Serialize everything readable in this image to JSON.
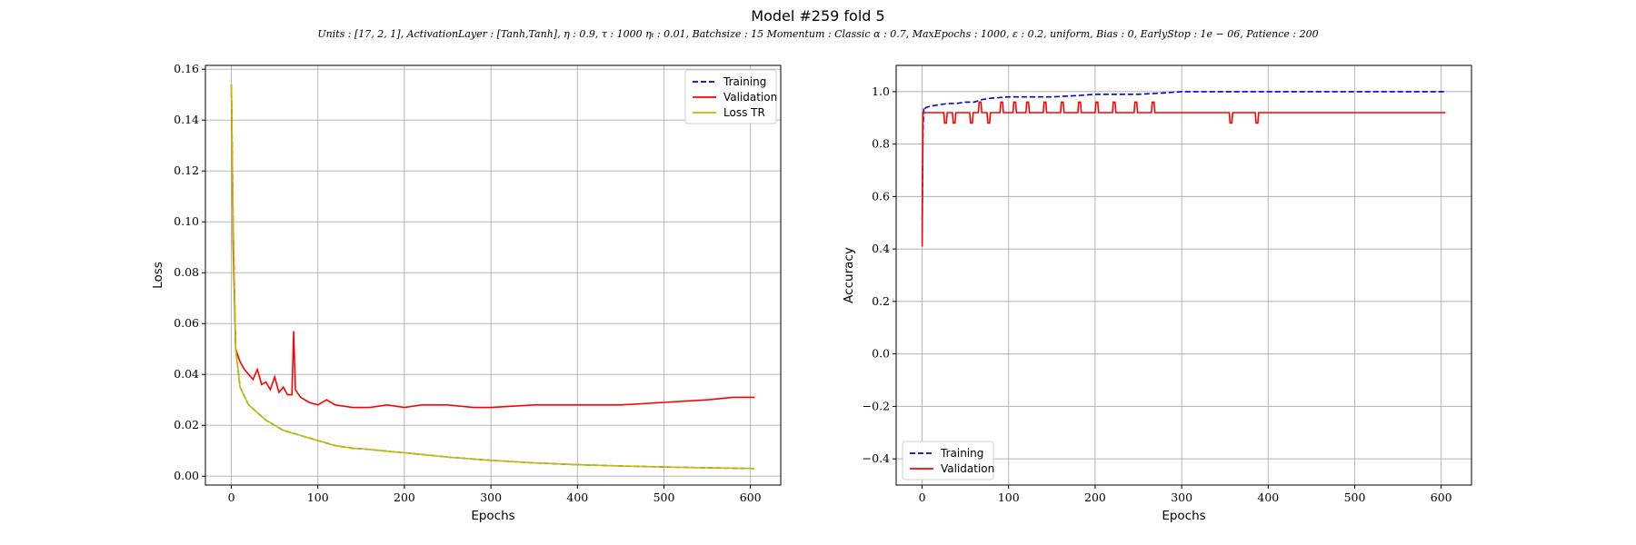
{
  "figure": {
    "title": "Model #259 fold 5",
    "subtitle": "Units : [17, 2, 1], ActivationLayer : [Tanh,Tanh], η : 0.9, τ : 1000 ηₜ : 0.01, Batchsize : 15 Momentum : Classic α : 0.7, MaxEpochs : 1000, ε : 0.2, uniform, Bias : 0, EarlyStop : 1e − 06, Patience : 200"
  },
  "colors": {
    "training": "#0000cc",
    "validation": "#ff0000",
    "loss_tr": "#bfbf00",
    "grid": "#b0b0b0"
  },
  "chart_data": [
    {
      "type": "line",
      "xlabel": "Epochs",
      "ylabel": "Loss",
      "xlim": [
        -30,
        635
      ],
      "ylim": [
        -0.0035,
        0.1615
      ],
      "xticks": [
        0,
        100,
        200,
        300,
        400,
        500,
        600
      ],
      "yticks": [
        0.0,
        0.02,
        0.04,
        0.06,
        0.08,
        0.1,
        0.12,
        0.14,
        0.16
      ],
      "ytick_labels": [
        "0.00",
        "0.02",
        "0.04",
        "0.06",
        "0.08",
        "0.10",
        "0.12",
        "0.14",
        "0.16"
      ],
      "grid": true,
      "legend": "top-right",
      "series": [
        {
          "name": "Training",
          "style": "dashed",
          "color_key": "training",
          "x": [
            0,
            2,
            5,
            10,
            20,
            30,
            40,
            50,
            60,
            70,
            80,
            90,
            100,
            120,
            140,
            160,
            180,
            200,
            250,
            300,
            350,
            400,
            450,
            500,
            550,
            605
          ],
          "y": [
            0.154,
            0.1,
            0.05,
            0.035,
            0.028,
            0.025,
            0.022,
            0.02,
            0.018,
            0.017,
            0.016,
            0.015,
            0.014,
            0.012,
            0.011,
            0.0105,
            0.0098,
            0.0092,
            0.0075,
            0.0062,
            0.0052,
            0.0045,
            0.004,
            0.0036,
            0.0033,
            0.003
          ]
        },
        {
          "name": "Validation",
          "style": "solid",
          "color_key": "validation",
          "x": [
            0,
            2,
            5,
            10,
            15,
            20,
            25,
            30,
            35,
            40,
            45,
            50,
            55,
            60,
            65,
            70,
            72,
            74,
            80,
            90,
            100,
            110,
            120,
            140,
            160,
            180,
            200,
            220,
            250,
            280,
            300,
            350,
            400,
            450,
            500,
            550,
            580,
            605
          ],
          "y": [
            0.152,
            0.09,
            0.05,
            0.045,
            0.042,
            0.04,
            0.038,
            0.042,
            0.036,
            0.037,
            0.034,
            0.039,
            0.033,
            0.035,
            0.032,
            0.032,
            0.057,
            0.034,
            0.031,
            0.029,
            0.028,
            0.03,
            0.028,
            0.027,
            0.027,
            0.028,
            0.027,
            0.028,
            0.028,
            0.027,
            0.027,
            0.028,
            0.028,
            0.028,
            0.029,
            0.03,
            0.031,
            0.031
          ]
        },
        {
          "name": "Loss TR",
          "style": "solid",
          "color_key": "loss_tr",
          "x": [
            0,
            2,
            5,
            10,
            20,
            30,
            40,
            50,
            60,
            70,
            80,
            90,
            100,
            120,
            140,
            160,
            180,
            200,
            250,
            300,
            350,
            400,
            450,
            500,
            550,
            605
          ],
          "y": [
            0.154,
            0.1,
            0.05,
            0.035,
            0.028,
            0.025,
            0.022,
            0.02,
            0.018,
            0.017,
            0.016,
            0.015,
            0.014,
            0.012,
            0.011,
            0.0105,
            0.0098,
            0.0092,
            0.0075,
            0.0062,
            0.0052,
            0.0045,
            0.004,
            0.0036,
            0.0033,
            0.003
          ]
        }
      ]
    },
    {
      "type": "line",
      "xlabel": "Epochs",
      "ylabel": "Accuracy",
      "xlim": [
        -30,
        635
      ],
      "ylim": [
        -0.5,
        1.1
      ],
      "xticks": [
        0,
        100,
        200,
        300,
        400,
        500,
        600
      ],
      "yticks": [
        -0.4,
        -0.2,
        0.0,
        0.2,
        0.4,
        0.6,
        0.8,
        1.0
      ],
      "ytick_labels": [
        "−0.4",
        "−0.2",
        "0.0",
        "0.2",
        "0.4",
        "0.6",
        "0.8",
        "1.0"
      ],
      "grid": true,
      "legend": "bottom-left",
      "series": [
        {
          "name": "Training",
          "style": "dashed",
          "color_key": "training",
          "x": [
            0,
            1,
            2,
            3,
            5,
            10,
            20,
            30,
            40,
            50,
            60,
            70,
            80,
            100,
            120,
            150,
            180,
            200,
            250,
            280,
            300,
            350,
            400,
            450,
            500,
            550,
            605
          ],
          "y": [
            0.51,
            0.85,
            0.94,
            0.935,
            0.94,
            0.945,
            0.95,
            0.955,
            0.955,
            0.96,
            0.96,
            0.97,
            0.975,
            0.98,
            0.98,
            0.98,
            0.985,
            0.99,
            0.99,
            0.995,
            1.0,
            1.0,
            1.0,
            1.0,
            1.0,
            1.0,
            1.0
          ]
        },
        {
          "name": "Validation",
          "style": "solid",
          "color_key": "validation",
          "x": [
            0,
            1,
            2,
            3,
            25,
            26,
            28,
            29,
            35,
            36,
            38,
            39,
            55,
            56,
            58,
            59,
            65,
            66,
            68,
            69,
            75,
            76,
            78,
            79,
            90,
            91,
            93,
            94,
            105,
            106,
            108,
            109,
            120,
            121,
            123,
            124,
            140,
            141,
            143,
            144,
            160,
            161,
            163,
            164,
            180,
            181,
            183,
            184,
            200,
            201,
            203,
            204,
            220,
            221,
            223,
            224,
            245,
            246,
            248,
            249,
            265,
            266,
            268,
            269,
            355,
            356,
            358,
            359,
            385,
            386,
            388,
            389,
            605
          ],
          "y": [
            0.41,
            0.92,
            0.92,
            0.92,
            0.92,
            0.88,
            0.88,
            0.92,
            0.92,
            0.88,
            0.88,
            0.92,
            0.92,
            0.88,
            0.88,
            0.92,
            0.92,
            0.96,
            0.96,
            0.92,
            0.92,
            0.88,
            0.88,
            0.92,
            0.92,
            0.96,
            0.96,
            0.92,
            0.92,
            0.96,
            0.96,
            0.92,
            0.92,
            0.96,
            0.96,
            0.92,
            0.92,
            0.96,
            0.96,
            0.92,
            0.92,
            0.96,
            0.96,
            0.92,
            0.92,
            0.96,
            0.96,
            0.92,
            0.92,
            0.96,
            0.96,
            0.92,
            0.92,
            0.96,
            0.96,
            0.92,
            0.92,
            0.96,
            0.96,
            0.92,
            0.92,
            0.96,
            0.96,
            0.92,
            0.92,
            0.88,
            0.88,
            0.92,
            0.92,
            0.88,
            0.88,
            0.92,
            0.92
          ]
        }
      ]
    }
  ]
}
